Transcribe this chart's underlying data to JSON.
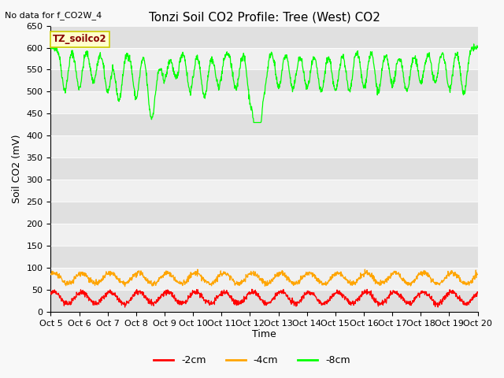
{
  "title": "Tonzi Soil CO2 Profile: Tree (West) CO2",
  "no_data_text": "No data for f_CO2W_4",
  "ylabel": "Soil CO2 (mV)",
  "xlabel": "Time",
  "legend_box_label": "TZ_soilco2",
  "ylim": [
    0,
    650
  ],
  "yticks": [
    0,
    50,
    100,
    150,
    200,
    250,
    300,
    350,
    400,
    450,
    500,
    550,
    600,
    650
  ],
  "x_tick_labels": [
    "Oct 5",
    "Oct 6",
    "Oct 7",
    "Oct 8",
    "Oct 9",
    "Oct 10\nOct",
    "Oct 11\nOct",
    "Oct 12\nOct",
    "Oct 13\nOct",
    "Oct 14\nOct",
    "Oct 15\nOct",
    "Oct 16\nOct",
    "Oct 17\nOct",
    "Oct 18\nOct",
    "Oct 19\nOct",
    "Oct 20"
  ],
  "x_tick_labels_simple": [
    "Oct 5",
    "Oct 6",
    "Oct 7",
    "Oct 8",
    "Oct 9",
    "Oct 10",
    "Oct 11",
    "Oct 12",
    "Oct 13",
    "Oct 14",
    "Oct 15",
    "Oct 16",
    "Oct 17",
    "Oct 18",
    "Oct 19",
    "Oct 20"
  ],
  "line_colors": {
    "m2cm": "#ff0000",
    "m4cm": "#ffa500",
    "m8cm": "#00ff00"
  },
  "legend_labels": [
    "-2cm",
    "-4cm",
    "-8cm"
  ],
  "legend_colors": [
    "#ff0000",
    "#ffa500",
    "#00ff00"
  ],
  "band_color_light": "#f0f0f0",
  "band_color_dark": "#e0e0e0",
  "fig_bg_color": "#f8f8f8",
  "legend_box_bg": "#ffffcc",
  "legend_box_border": "#cccc00",
  "legend_box_text_color": "#880000",
  "title_fontsize": 11,
  "label_fontsize": 9,
  "tick_fontsize": 8
}
